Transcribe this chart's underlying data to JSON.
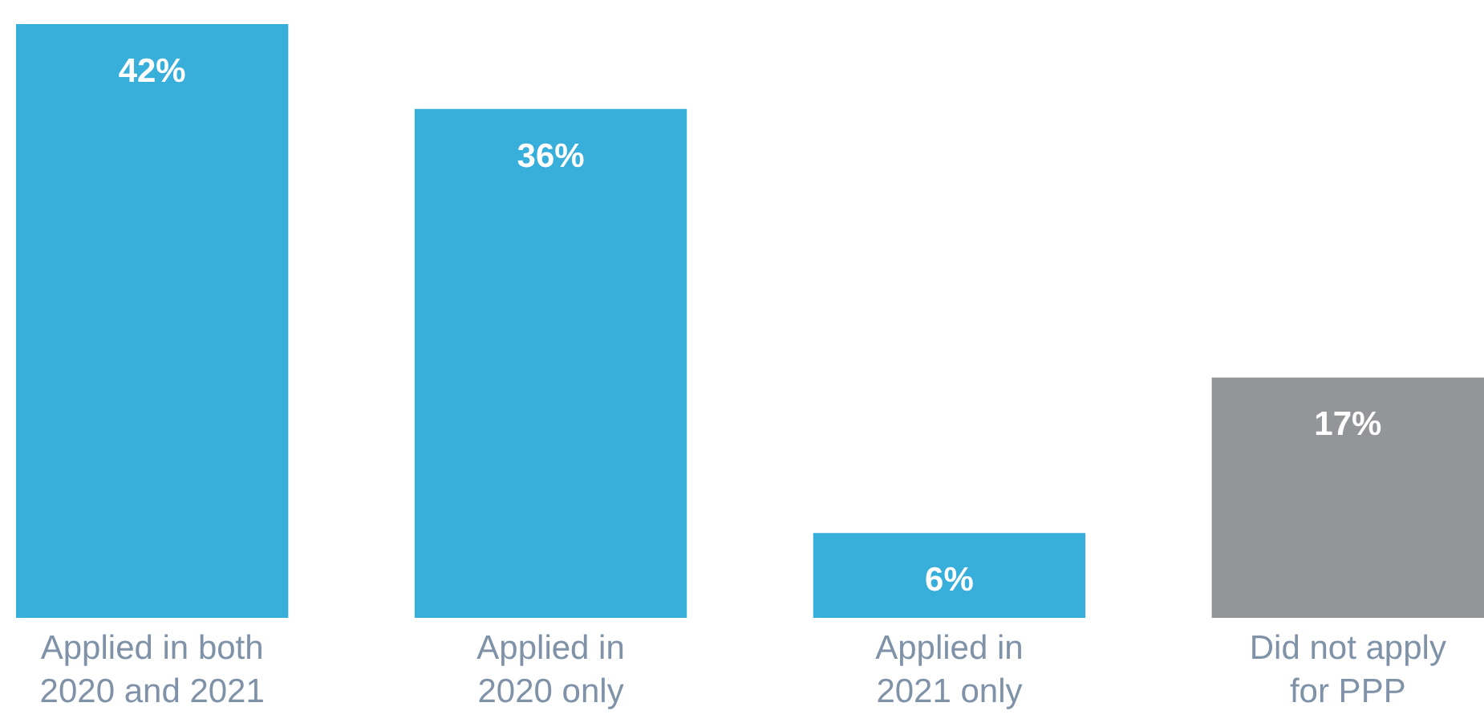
{
  "chart_data": {
    "type": "bar",
    "categories": [
      "Applied in both\n2020 and 2021",
      "Applied in\n2020 only",
      "Applied in\n2021 only",
      "Did not apply\nfor PPP"
    ],
    "values": [
      42,
      36,
      6,
      17
    ],
    "colors": [
      "#38aedb",
      "#38aedb",
      "#38aedb",
      "#939598"
    ],
    "value_labels": [
      "42%",
      "36%",
      "6%",
      "17%"
    ],
    "grid": false
  }
}
